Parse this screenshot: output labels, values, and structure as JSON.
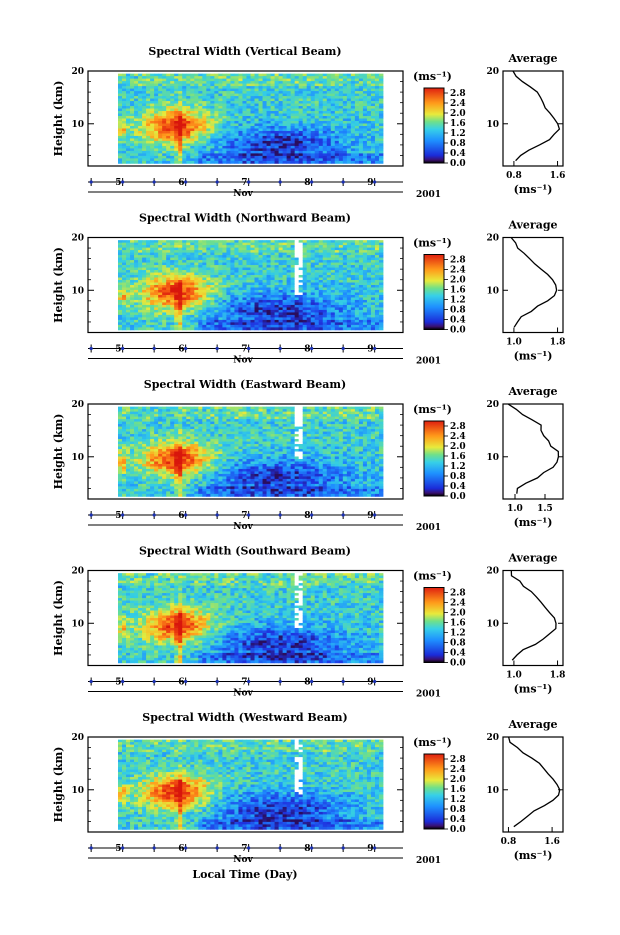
{
  "chart_data": [
    {
      "type": "heatmap",
      "title": "Spectral Width (Vertical Beam)",
      "ylabel": "Height (km)",
      "ylim": [
        2,
        20
      ],
      "y_ticks": [
        "20",
        "10"
      ],
      "x_ticks": [
        "5",
        "6",
        "7",
        "8",
        "9"
      ],
      "x_unit": "Nov",
      "year": "2001",
      "colorbar": {
        "unit": "(ms⁻¹)",
        "ticks": [
          "2.8",
          "2.4",
          "2.0",
          "1.6",
          "1.2",
          "0.8",
          "0.4",
          "0.0"
        ],
        "range": [
          0,
          3.0
        ]
      },
      "data_gap": null,
      "average_profile": {
        "title": "Average",
        "xlabel": "(ms⁻¹)",
        "x_ticks": [
          "0.8",
          "1.6"
        ],
        "xlim": [
          0.6,
          1.7
        ],
        "height": [
          3,
          4,
          5,
          6,
          7,
          8,
          9,
          10,
          11,
          12,
          13,
          14,
          15,
          16,
          17,
          18,
          19,
          20
        ],
        "value": [
          0.85,
          0.95,
          1.1,
          1.3,
          1.45,
          1.55,
          1.62,
          1.6,
          1.52,
          1.45,
          1.4,
          1.35,
          1.28,
          1.2,
          1.1,
          0.95,
          0.85,
          0.8
        ]
      }
    },
    {
      "type": "heatmap",
      "title": "Spectral Width (Northward Beam)",
      "ylabel": "Height (km)",
      "ylim": [
        2,
        20
      ],
      "y_ticks": [
        "20",
        "10"
      ],
      "x_ticks": [
        "5",
        "6",
        "7",
        "8",
        "9"
      ],
      "x_unit": "Nov",
      "year": "2001",
      "colorbar": {
        "unit": "(ms⁻¹)",
        "ticks": [
          "2.8",
          "2.4",
          "2.0",
          "1.6",
          "1.2",
          "0.8",
          "0.4",
          "0.0"
        ],
        "range": [
          0,
          3.0
        ]
      },
      "data_gap": [
        7.8,
        7.95
      ],
      "average_profile": {
        "title": "Average",
        "xlabel": "(ms⁻¹)",
        "x_ticks": [
          "1.0",
          "1.8"
        ],
        "xlim": [
          0.8,
          1.9
        ],
        "height": [
          3,
          4,
          5,
          6,
          7,
          8,
          9,
          10,
          11,
          12,
          13,
          14,
          15,
          16,
          17,
          18,
          19,
          20
        ],
        "value": [
          1.0,
          1.1,
          1.15,
          1.3,
          1.45,
          1.6,
          1.72,
          1.8,
          1.78,
          1.7,
          1.6,
          1.5,
          1.4,
          1.3,
          1.2,
          1.1,
          1.0,
          0.95
        ]
      }
    },
    {
      "type": "heatmap",
      "title": "Spectral Width (Eastward Beam)",
      "ylabel": "Height (km)",
      "ylim": [
        2,
        20
      ],
      "y_ticks": [
        "20",
        "10"
      ],
      "x_ticks": [
        "5",
        "6",
        "7",
        "8",
        "9"
      ],
      "x_unit": "Nov",
      "year": "2001",
      "colorbar": {
        "unit": "(ms⁻¹)",
        "ticks": [
          "2.8",
          "2.4",
          "2.0",
          "1.6",
          "1.2",
          "0.8",
          "0.4",
          "0.0"
        ],
        "range": [
          0,
          3.0
        ]
      },
      "data_gap": [
        7.8,
        7.95
      ],
      "average_profile": {
        "title": "Average",
        "xlabel": "(ms⁻¹)",
        "x_ticks": [
          "1.0",
          "1.5"
        ],
        "xlim": [
          0.8,
          1.8
        ],
        "height": [
          3,
          4,
          5,
          6,
          7,
          8,
          9,
          10,
          11,
          12,
          13,
          14,
          15,
          16,
          17,
          18,
          19,
          20
        ],
        "value": [
          1.0,
          1.05,
          1.2,
          1.35,
          1.5,
          1.62,
          1.72,
          1.75,
          1.7,
          1.62,
          1.55,
          1.5,
          1.45,
          1.42,
          1.3,
          1.15,
          1.0,
          0.9
        ]
      }
    },
    {
      "type": "heatmap",
      "title": "Spectral Width (Southward Beam)",
      "ylabel": "Height (km)",
      "ylim": [
        2,
        20
      ],
      "y_ticks": [
        "20",
        "10"
      ],
      "x_ticks": [
        "5",
        "6",
        "7",
        "8",
        "9"
      ],
      "x_unit": "Nov",
      "year": "2001",
      "colorbar": {
        "unit": "(ms⁻¹)",
        "ticks": [
          "2.8",
          "2.4",
          "2.0",
          "1.6",
          "1.2",
          "0.8",
          "0.4",
          "0.0"
        ],
        "range": [
          0,
          3.0
        ]
      },
      "data_gap": [
        7.8,
        7.95
      ],
      "average_profile": {
        "title": "Average",
        "xlabel": "(ms⁻¹)",
        "x_ticks": [
          "1.0",
          "1.8"
        ],
        "xlim": [
          0.8,
          1.9
        ],
        "height": [
          3,
          4,
          5,
          6,
          7,
          8,
          9,
          10,
          11,
          12,
          13,
          14,
          15,
          16,
          17,
          18,
          19,
          20
        ],
        "value": [
          1.0,
          1.08,
          1.2,
          1.38,
          1.55,
          1.68,
          1.78,
          1.8,
          1.75,
          1.65,
          1.58,
          1.5,
          1.42,
          1.32,
          1.2,
          1.08,
          0.98,
          0.92
        ]
      }
    },
    {
      "type": "heatmap",
      "title": "Spectral Width (Westward Beam)",
      "ylabel": "Height (km)",
      "ylim": [
        2,
        20
      ],
      "y_ticks": [
        "20",
        "10"
      ],
      "x_ticks": [
        "5",
        "6",
        "7",
        "8",
        "9"
      ],
      "x_unit": "Nov",
      "year": "2001",
      "xlabel": "Local Time (Day)",
      "colorbar": {
        "unit": "(ms⁻¹)",
        "ticks": [
          "2.8",
          "2.4",
          "2.0",
          "1.6",
          "1.2",
          "0.8",
          "0.4",
          "0.0"
        ],
        "range": [
          0,
          3.0
        ]
      },
      "data_gap": [
        7.8,
        7.95
      ],
      "average_profile": {
        "title": "Average",
        "xlabel": "(ms⁻¹)",
        "x_ticks": [
          "0.8",
          "1.6"
        ],
        "xlim": [
          0.7,
          1.8
        ],
        "height": [
          3,
          4,
          5,
          6,
          7,
          8,
          9,
          10,
          11,
          12,
          13,
          14,
          15,
          16,
          17,
          18,
          19,
          20
        ],
        "value": [
          0.9,
          1.0,
          1.15,
          1.3,
          1.48,
          1.62,
          1.72,
          1.75,
          1.7,
          1.6,
          1.5,
          1.42,
          1.35,
          1.25,
          1.1,
          0.95,
          0.85,
          0.8
        ]
      }
    }
  ]
}
